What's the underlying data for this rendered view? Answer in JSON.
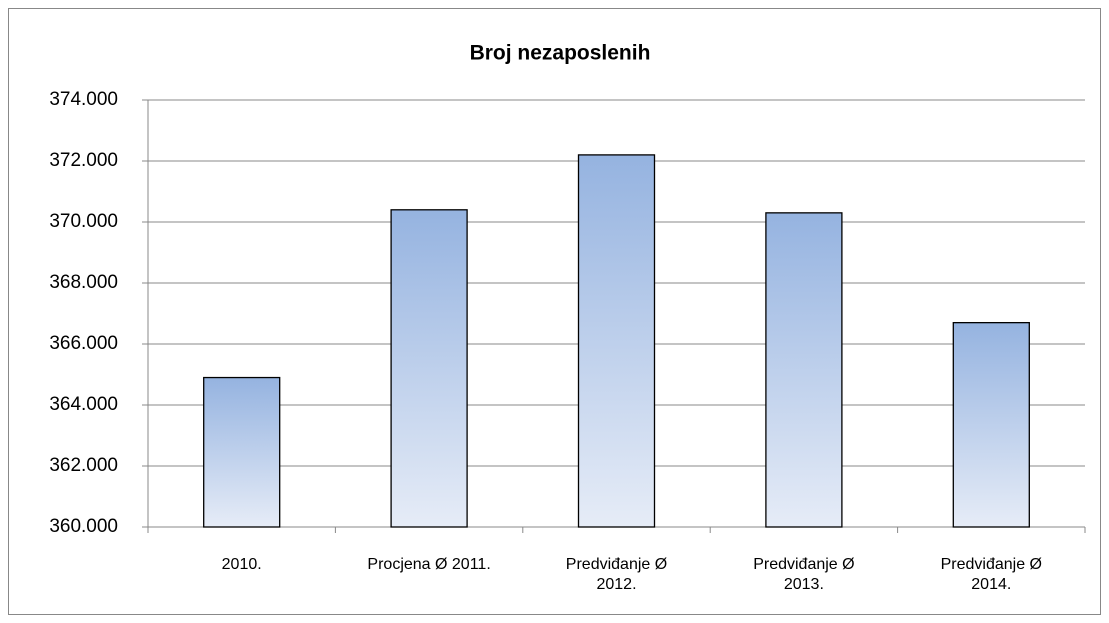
{
  "chart_data": {
    "type": "bar",
    "title": "Broj nezaposlenih",
    "categories": [
      "2010.",
      "Procjena Ø 2011.",
      "Predviđanje Ø 2012.",
      "Predviđanje Ø 2013.",
      "Predviđanje Ø 2014."
    ],
    "values": [
      364900,
      370400,
      372200,
      370300,
      366700
    ],
    "color": "#95b3e0",
    "ylim": [
      360000,
      374000
    ],
    "yticks": [
      {
        "value": 360000,
        "label": "360.000"
      },
      {
        "value": 362000,
        "label": "362.000"
      },
      {
        "value": 364000,
        "label": "364.000"
      },
      {
        "value": 366000,
        "label": "366.000"
      },
      {
        "value": 368000,
        "label": "368.000"
      },
      {
        "value": 370000,
        "label": "370.000"
      },
      {
        "value": 372000,
        "label": "372.000"
      },
      {
        "value": 374000,
        "label": "374.000"
      }
    ],
    "grid": true
  }
}
